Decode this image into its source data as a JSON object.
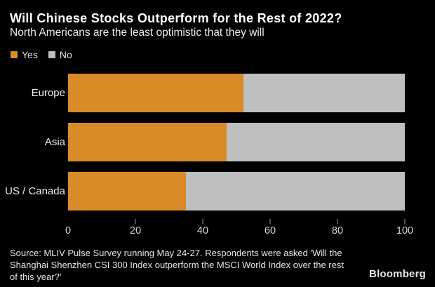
{
  "header": {
    "title": "Will Chinese Stocks Outperform for the Rest of 2022?",
    "subtitle": "North Americans are the least optimistic that they will"
  },
  "legend": [
    {
      "label": "Yes",
      "color": "#d98b28"
    },
    {
      "label": "No",
      "color": "#bfbfbf"
    }
  ],
  "chart_data": {
    "type": "bar",
    "orientation": "horizontal",
    "stacked": true,
    "title": "Will Chinese Stocks Outperform for the Rest of 2022?",
    "subtitle": "North Americans are the least optimistic that they will",
    "categories": [
      "Europe",
      "Asia",
      "US / Canada"
    ],
    "series": [
      {
        "name": "Yes",
        "color": "#d98b28",
        "values": [
          52,
          47,
          35
        ]
      },
      {
        "name": "No",
        "color": "#bfbfbf",
        "values": [
          48,
          53,
          65
        ]
      }
    ],
    "xlabel": "",
    "ylabel": "",
    "xlim": [
      0,
      100
    ],
    "x_ticks": [
      0,
      20,
      40,
      60,
      80,
      100
    ],
    "grid": false,
    "legend_position": "top-left",
    "background": "#000000"
  },
  "footer": {
    "source_lines": [
      "Source: MLIV Pulse Survey running May 24-27. Respondents were asked 'Will the",
      "Shanghai Shenzhen CSI 300 Index outperform the MSCI World Index over the rest",
      "of this year?'"
    ],
    "logo": "Bloomberg"
  }
}
